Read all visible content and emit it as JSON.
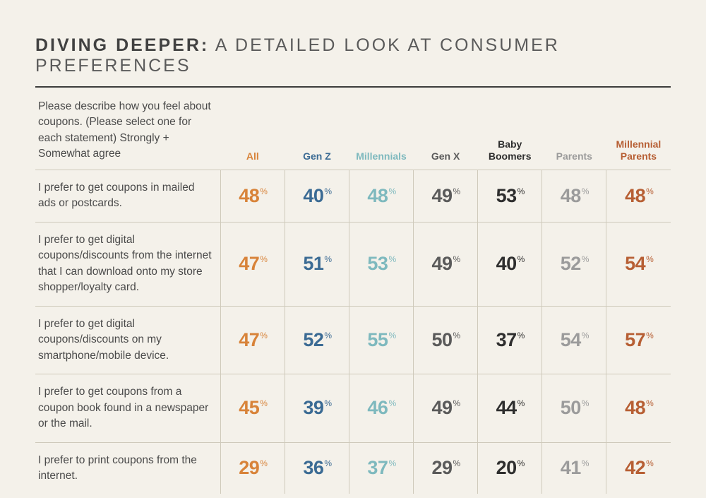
{
  "title_bold": "DIVING DEEPER:",
  "title_rest": " A DETAILED LOOK AT CONSUMER PREFERENCES",
  "prompt": "Please describe how you feel about coupons. (Please select one for each statement) Strongly + Somewhat agree",
  "columns": [
    {
      "label": "All",
      "color": "#d88339"
    },
    {
      "label": "Gen Z",
      "color": "#3b6b94"
    },
    {
      "label": "Millennials",
      "color": "#7eb9be"
    },
    {
      "label": "Gen X",
      "color": "#5a5a5a"
    },
    {
      "label": "Baby Boomers",
      "color": "#2e2e2e"
    },
    {
      "label": "Parents",
      "color": "#9b9b9b"
    },
    {
      "label": "Millennial Parents",
      "color": "#b75f34"
    }
  ],
  "rows": [
    {
      "statement": "I prefer to get coupons in mailed ads or postcards.",
      "values": [
        48,
        40,
        48,
        49,
        53,
        48,
        48
      ]
    },
    {
      "statement": "I prefer to get digital coupons/discounts from the internet that I can download onto my store shopper/loyalty card.",
      "values": [
        47,
        51,
        53,
        49,
        40,
        52,
        54
      ]
    },
    {
      "statement": "I prefer to get digital coupons/discounts on my smartphone/mobile device.",
      "values": [
        47,
        52,
        55,
        50,
        37,
        54,
        57
      ]
    },
    {
      "statement": "I prefer to get coupons from a coupon book found in a newspaper or the mail.",
      "values": [
        45,
        39,
        46,
        49,
        44,
        50,
        48
      ]
    },
    {
      "statement": "I prefer to print coupons from the internet.",
      "values": [
        29,
        36,
        37,
        29,
        20,
        41,
        42
      ]
    }
  ],
  "percent_symbol": "%",
  "styling": {
    "background_color": "#f4f1ea",
    "grid_color": "#cfcabb",
    "rule_color": "#3c3c3c",
    "title_fontsize": 25,
    "header_fontsize": 14,
    "body_fontsize": 15.5,
    "value_fontsize": 27,
    "pct_fontsize": 12
  }
}
